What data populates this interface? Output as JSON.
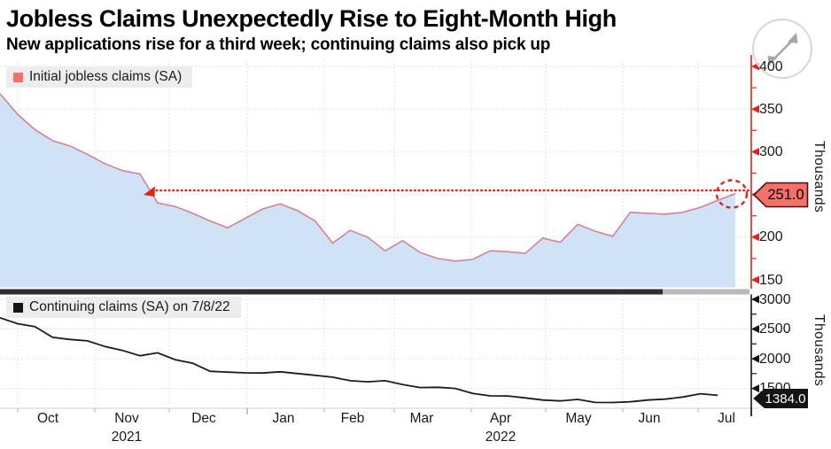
{
  "header": {
    "title": "Jobless Claims Unexpectedly Rise to Eight-Month High",
    "subtitle": "New applications rise for a third week; continuing claims also pick up"
  },
  "icons": {
    "expand_button": "diagonal-expand-arrow",
    "top_axis_ticks": "left-arrow-tick",
    "callout_shape": "left-pointing-tag"
  },
  "colors": {
    "accent_red": "#dc251c",
    "initial_claims_line": "#d8808f",
    "initial_claims_fill": "#cfe2f6",
    "initial_claims_swatch": "#f4716a",
    "continuing_claims_line": "#1c1c1c",
    "callout_top_bg": "#f4716a",
    "callout_top_border": "#4d100a",
    "callout_bottom_bg": "#141414",
    "grid": "#d9d9d9",
    "divider_dark": "#2e2e2e",
    "divider_light": "#b9b9b9"
  },
  "x_axis": {
    "months": [
      "Oct",
      "Nov",
      "Dec",
      "Jan",
      "Feb",
      "Mar",
      "Apr",
      "May",
      "Jun",
      "Jul"
    ],
    "years": [
      {
        "label": "2021",
        "under_month": "Nov"
      },
      {
        "label": "2022",
        "under_month": "Apr"
      }
    ]
  },
  "chart_data": [
    {
      "type": "area",
      "series_name": "Initial jobless claims (SA)",
      "frequency": "weekly",
      "ylabel": "Thousands",
      "yticks": [
        150,
        200,
        250,
        300,
        350,
        400
      ],
      "ylim": [
        150,
        400
      ],
      "grid": true,
      "values": [
        368,
        344,
        326,
        313,
        307,
        297,
        286,
        278,
        274,
        240,
        236,
        228,
        219,
        211,
        222,
        233,
        239,
        231,
        219,
        193,
        208,
        200,
        184,
        196,
        182,
        175,
        172,
        174,
        184,
        183,
        181,
        199,
        194,
        215,
        207,
        201,
        229,
        228,
        227,
        229,
        235,
        243,
        251
      ],
      "last_value": 251.0,
      "last_value_label": "251.0",
      "annotation": {
        "type": "horizontal-dotted-arrow",
        "level": 251,
        "note": "dotted red arrow from Nov 2021 crossing to latest point, latest point circled with dashed ring"
      }
    },
    {
      "type": "line",
      "series_name": "Continuing claims (SA) on 7/8/22",
      "frequency": "weekly",
      "ylabel": "Thousands",
      "yticks": [
        1500,
        2000,
        2500,
        3000
      ],
      "ylim": [
        1300,
        3000
      ],
      "grid": true,
      "values": [
        2690,
        2590,
        2540,
        2360,
        2325,
        2300,
        2205,
        2140,
        2050,
        2100,
        1985,
        1925,
        1790,
        1775,
        1762,
        1760,
        1780,
        1750,
        1720,
        1690,
        1630,
        1612,
        1630,
        1565,
        1515,
        1520,
        1500,
        1415,
        1375,
        1373,
        1340,
        1305,
        1290,
        1315,
        1265,
        1263,
        1275,
        1305,
        1320,
        1355,
        1410,
        1384
      ],
      "last_value": 1384.0,
      "last_value_label": "1384.0"
    }
  ]
}
